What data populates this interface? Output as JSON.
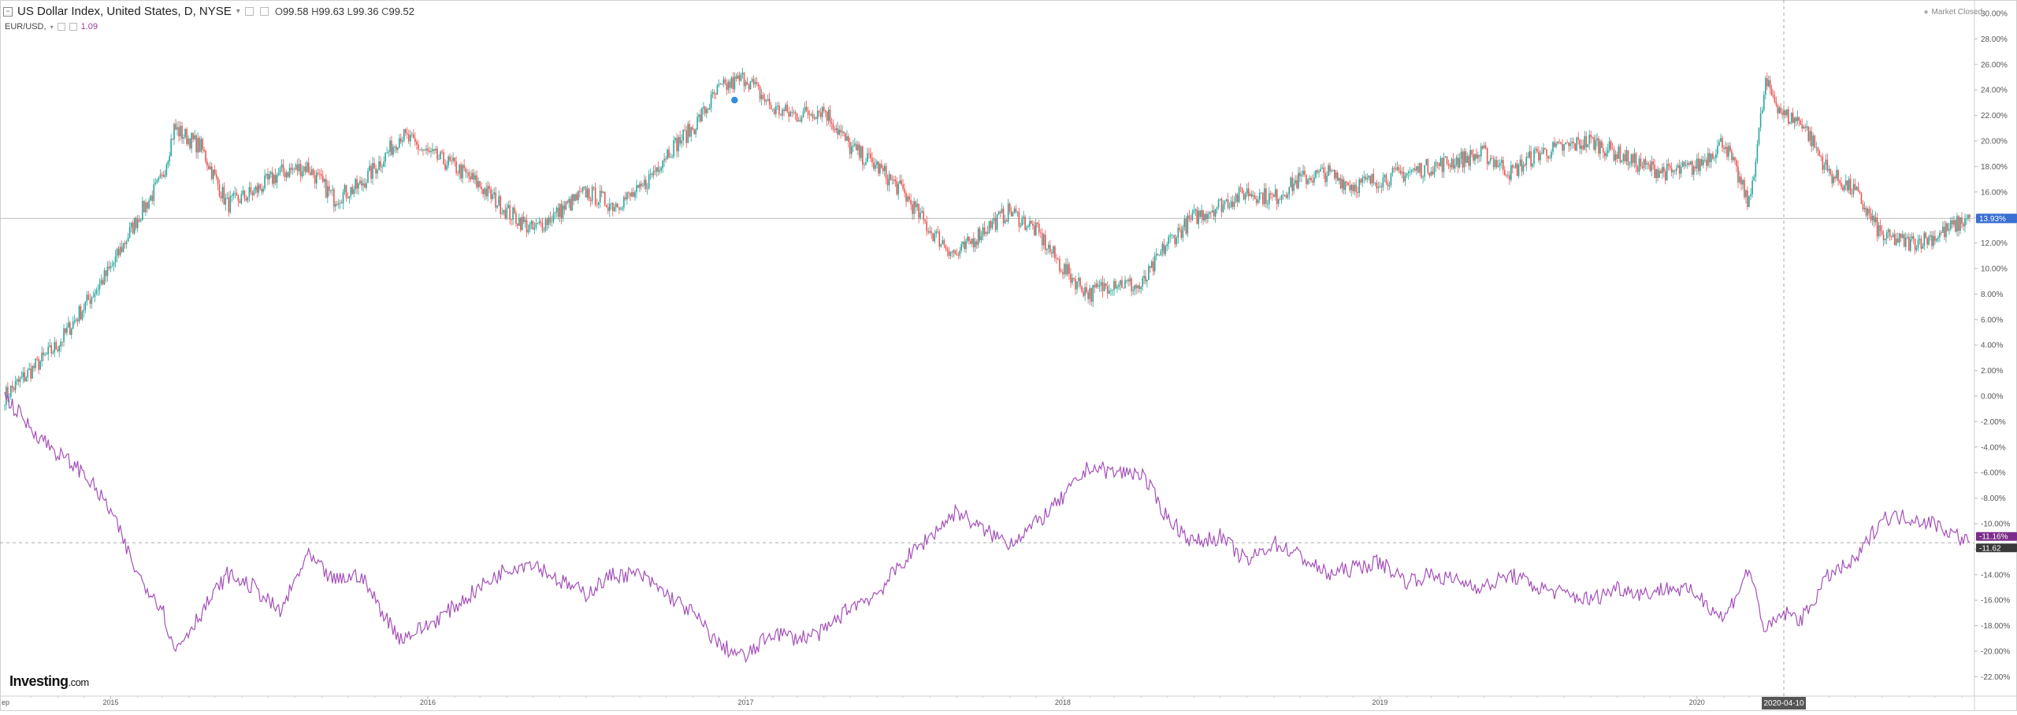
{
  "header": {
    "symbol_title": "US Dollar Index, United States, D, NYSE",
    "open_label": "O",
    "open": "99.58",
    "high_label": "H",
    "high": "99.63",
    "low_label": "L",
    "low": "99.36",
    "close_label": "C",
    "close": "99.52",
    "compare_symbol": "EUR/USD,",
    "compare_value": "1.09",
    "market_status": "Market Closed",
    "logo_main": "Investing",
    "logo_suffix": ".com"
  },
  "colors": {
    "up_candle": "#26a69a",
    "down_candle": "#ef5350",
    "eurusd_line": "#a450b8",
    "last_price_badge": "#3b6fd1",
    "eurusd_badge": "#7b2d8b",
    "crosshair_date_badge": "#555555"
  },
  "chart_data": {
    "type": "line",
    "title": "",
    "xlabel": "",
    "ylabel": "",
    "y_axis_unit": "percent",
    "ylim": [
      -23,
      31
    ],
    "y_ticks": [
      "30.00%",
      "28.00%",
      "26.00%",
      "24.00%",
      "22.00%",
      "20.00%",
      "18.00%",
      "16.00%",
      "14.00%",
      "12.00%",
      "10.00%",
      "8.00%",
      "6.00%",
      "4.00%",
      "2.00%",
      "0.00%",
      "-2.00%",
      "-4.00%",
      "-6.00%",
      "-8.00%",
      "-10.00%",
      "-12.00%",
      "-14.00%",
      "-16.00%",
      "-18.00%",
      "-20.00%",
      "-22.00%"
    ],
    "x_ticks": [
      "2015",
      "2016",
      "2017",
      "2018",
      "2019",
      "2020"
    ],
    "x_range": [
      "2014-09-01",
      "2020-11-10"
    ],
    "x_start_label": "ep",
    "grid": false,
    "legend": "top-left",
    "series": [
      {
        "name": "US Dollar Index",
        "style": "candlestick",
        "points": [
          [
            "2014-09-01",
            0.0
          ],
          [
            "2014-10-01",
            2.0
          ],
          [
            "2014-11-01",
            4.0
          ],
          [
            "2014-12-01",
            7.0
          ],
          [
            "2015-01-01",
            10.0
          ],
          [
            "2015-02-01",
            14.0
          ],
          [
            "2015-03-01",
            17.0
          ],
          [
            "2015-03-15",
            21.0
          ],
          [
            "2015-04-15",
            19.5
          ],
          [
            "2015-05-15",
            15.0
          ],
          [
            "2015-06-15",
            16.0
          ],
          [
            "2015-07-15",
            17.5
          ],
          [
            "2015-08-15",
            18.0
          ],
          [
            "2015-09-15",
            15.5
          ],
          [
            "2015-10-15",
            16.5
          ],
          [
            "2015-11-15",
            19.0
          ],
          [
            "2015-12-01",
            20.5
          ],
          [
            "2016-01-01",
            19.0
          ],
          [
            "2016-02-01",
            18.0
          ],
          [
            "2016-03-01",
            16.5
          ],
          [
            "2016-04-01",
            14.5
          ],
          [
            "2016-05-01",
            13.0
          ],
          [
            "2016-06-01",
            14.5
          ],
          [
            "2016-07-01",
            16.0
          ],
          [
            "2016-08-01",
            15.0
          ],
          [
            "2016-09-01",
            16.0
          ],
          [
            "2016-10-01",
            19.0
          ],
          [
            "2016-11-01",
            21.0
          ],
          [
            "2016-12-01",
            24.0
          ],
          [
            "2017-01-01",
            25.0
          ],
          [
            "2017-02-01",
            22.5
          ],
          [
            "2017-03-01",
            22.0
          ],
          [
            "2017-04-01",
            22.5
          ],
          [
            "2017-05-01",
            19.5
          ],
          [
            "2017-06-01",
            18.0
          ],
          [
            "2017-07-01",
            16.0
          ],
          [
            "2017-08-01",
            13.0
          ],
          [
            "2017-09-01",
            11.0
          ],
          [
            "2017-10-01",
            13.0
          ],
          [
            "2017-11-01",
            14.5
          ],
          [
            "2017-12-01",
            13.0
          ],
          [
            "2018-01-01",
            10.0
          ],
          [
            "2018-02-01",
            8.0
          ],
          [
            "2018-03-01",
            9.0
          ],
          [
            "2018-04-01",
            8.5
          ],
          [
            "2018-05-01",
            12.0
          ],
          [
            "2018-06-01",
            14.0
          ],
          [
            "2018-07-01",
            15.0
          ],
          [
            "2018-08-01",
            16.0
          ],
          [
            "2018-09-01",
            15.5
          ],
          [
            "2018-10-01",
            17.0
          ],
          [
            "2018-11-01",
            17.5
          ],
          [
            "2018-12-01",
            16.5
          ],
          [
            "2019-01-01",
            17.0
          ],
          [
            "2019-02-01",
            17.5
          ],
          [
            "2019-03-01",
            18.0
          ],
          [
            "2019-04-01",
            18.5
          ],
          [
            "2019-05-01",
            19.0
          ],
          [
            "2019-06-01",
            17.5
          ],
          [
            "2019-07-01",
            19.0
          ],
          [
            "2019-08-01",
            19.5
          ],
          [
            "2019-09-01",
            20.0
          ],
          [
            "2019-10-01",
            19.0
          ],
          [
            "2019-11-01",
            18.0
          ],
          [
            "2019-12-01",
            17.5
          ],
          [
            "2020-01-01",
            18.0
          ],
          [
            "2020-02-01",
            20.0
          ],
          [
            "2020-03-01",
            15.0
          ],
          [
            "2020-03-20",
            24.5
          ],
          [
            "2020-04-10",
            22.0
          ],
          [
            "2020-05-01",
            21.5
          ],
          [
            "2020-06-01",
            17.5
          ],
          [
            "2020-07-01",
            16.0
          ],
          [
            "2020-08-01",
            12.5
          ],
          [
            "2020-09-01",
            12.0
          ],
          [
            "2020-10-01",
            12.5
          ],
          [
            "2020-11-10",
            14.0
          ]
        ]
      },
      {
        "name": "EUR/USD",
        "style": "line",
        "points": [
          [
            "2014-09-01",
            0.0
          ],
          [
            "2014-10-01",
            -2.5
          ],
          [
            "2014-11-01",
            -4.5
          ],
          [
            "2014-12-01",
            -6.0
          ],
          [
            "2015-01-01",
            -9.0
          ],
          [
            "2015-02-01",
            -14.0
          ],
          [
            "2015-03-01",
            -16.5
          ],
          [
            "2015-03-15",
            -20.0
          ],
          [
            "2015-04-15",
            -17.0
          ],
          [
            "2015-05-15",
            -14.0
          ],
          [
            "2015-06-15",
            -15.0
          ],
          [
            "2015-07-15",
            -17.0
          ],
          [
            "2015-08-15",
            -12.5
          ],
          [
            "2015-09-15",
            -14.5
          ],
          [
            "2015-10-15",
            -14.0
          ],
          [
            "2015-11-15",
            -17.5
          ],
          [
            "2015-12-01",
            -19.0
          ],
          [
            "2016-01-01",
            -18.0
          ],
          [
            "2016-02-01",
            -16.5
          ],
          [
            "2016-03-01",
            -15.0
          ],
          [
            "2016-04-01",
            -13.5
          ],
          [
            "2016-05-01",
            -13.0
          ],
          [
            "2016-06-01",
            -14.5
          ],
          [
            "2016-07-01",
            -15.5
          ],
          [
            "2016-08-01",
            -14.0
          ],
          [
            "2016-09-01",
            -14.0
          ],
          [
            "2016-10-01",
            -15.5
          ],
          [
            "2016-11-01",
            -17.0
          ],
          [
            "2016-12-01",
            -19.5
          ],
          [
            "2017-01-01",
            -20.5
          ],
          [
            "2017-02-01",
            -18.5
          ],
          [
            "2017-03-01",
            -19.0
          ],
          [
            "2017-04-01",
            -18.5
          ],
          [
            "2017-05-01",
            -16.5
          ],
          [
            "2017-06-01",
            -15.5
          ],
          [
            "2017-07-01",
            -13.0
          ],
          [
            "2017-08-01",
            -11.0
          ],
          [
            "2017-09-01",
            -9.0
          ],
          [
            "2017-10-01",
            -10.5
          ],
          [
            "2017-11-01",
            -11.5
          ],
          [
            "2017-12-01",
            -10.0
          ],
          [
            "2018-01-01",
            -8.0
          ],
          [
            "2018-02-01",
            -5.5
          ],
          [
            "2018-03-01",
            -6.0
          ],
          [
            "2018-04-01",
            -6.0
          ],
          [
            "2018-05-01",
            -9.5
          ],
          [
            "2018-06-01",
            -11.5
          ],
          [
            "2018-07-01",
            -11.0
          ],
          [
            "2018-08-01",
            -13.0
          ],
          [
            "2018-09-01",
            -11.5
          ],
          [
            "2018-10-01",
            -12.5
          ],
          [
            "2018-11-01",
            -14.0
          ],
          [
            "2018-12-01",
            -13.5
          ],
          [
            "2019-01-01",
            -13.0
          ],
          [
            "2019-02-01",
            -14.5
          ],
          [
            "2019-03-01",
            -14.0
          ],
          [
            "2019-04-01",
            -14.5
          ],
          [
            "2019-05-01",
            -15.0
          ],
          [
            "2019-06-01",
            -14.0
          ],
          [
            "2019-07-01",
            -15.0
          ],
          [
            "2019-08-01",
            -15.5
          ],
          [
            "2019-09-01",
            -16.0
          ],
          [
            "2019-10-01",
            -15.0
          ],
          [
            "2019-11-01",
            -15.5
          ],
          [
            "2019-12-01",
            -15.0
          ],
          [
            "2020-01-01",
            -15.5
          ],
          [
            "2020-02-01",
            -17.5
          ],
          [
            "2020-03-01",
            -13.5
          ],
          [
            "2020-03-20",
            -18.5
          ],
          [
            "2020-04-10",
            -17.0
          ],
          [
            "2020-05-01",
            -17.5
          ],
          [
            "2020-06-01",
            -14.0
          ],
          [
            "2020-07-01",
            -13.0
          ],
          [
            "2020-08-01",
            -9.5
          ],
          [
            "2020-09-01",
            -9.5
          ],
          [
            "2020-10-01",
            -10.0
          ],
          [
            "2020-11-10",
            -11.5
          ]
        ]
      }
    ],
    "reference_line": {
      "value": 13.93,
      "style": "solid",
      "color": "#bdbdbd"
    },
    "last_price_label": "13.93%",
    "eurusd_last_label": "-11.16%",
    "eurusd_price_label": "-11.62",
    "crosshair": {
      "date_label": "2020-04-10",
      "y_value": -11.5
    }
  }
}
